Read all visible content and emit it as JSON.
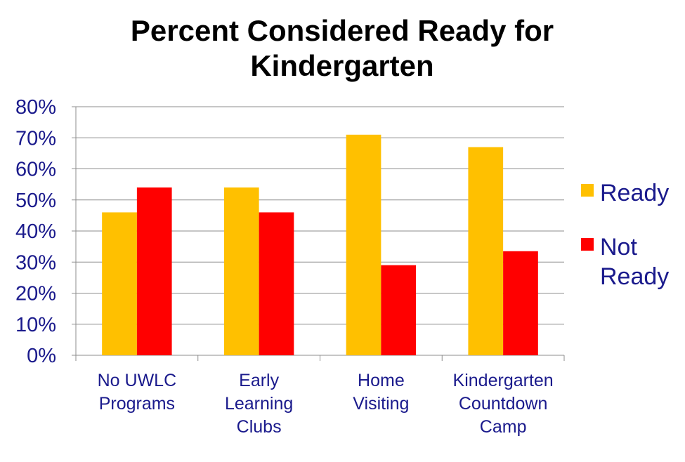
{
  "chart_data": {
    "type": "bar",
    "title": [
      "Percent Considered Ready for",
      "Kindergarten"
    ],
    "categories": [
      [
        "No UWLC",
        "Programs"
      ],
      [
        "Early",
        "Learning",
        "Clubs"
      ],
      [
        "Home",
        "Visiting"
      ],
      [
        "Kindergarten",
        "Countdown",
        "Camp"
      ]
    ],
    "series": [
      {
        "name": [
          "Ready"
        ],
        "color": "#FFC000",
        "values": [
          46,
          54,
          71,
          67
        ]
      },
      {
        "name": [
          "Not",
          "Ready"
        ],
        "color": "#FF0000",
        "values": [
          54,
          46,
          29,
          33.5
        ]
      }
    ],
    "ylim": [
      0,
      80
    ],
    "yticks": [
      0,
      10,
      20,
      30,
      40,
      50,
      60,
      70,
      80
    ],
    "ytick_labels": [
      "0%",
      "10%",
      "20%",
      "30%",
      "40%",
      "50%",
      "60%",
      "70%",
      "80%"
    ],
    "grid": true,
    "legend_position": "right"
  }
}
